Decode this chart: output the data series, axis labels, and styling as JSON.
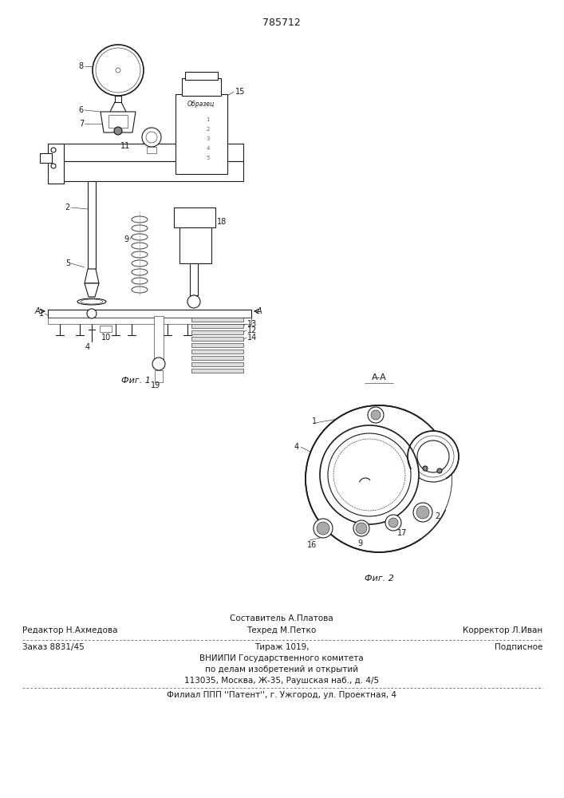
{
  "patent_number": "785712",
  "bg_color": "#ffffff",
  "fig1_caption": "Фиг. 1",
  "fig2_caption": "Фиг. 2",
  "fig2_label": "A-A",
  "footer": {
    "line1_center": "Составитель А.Платова",
    "line2_left": "Редактор Н.Ахмедова",
    "line2_center": "Техред М.Петко",
    "line2_right": "Корректор Л.Иван",
    "line3_left": "Заказ 8831/45",
    "line3_center": "Тираж 1019,",
    "line3_right": "Подписное",
    "line4": "ВНИИПИ Государственного комитета",
    "line5": "по делам изобретений и открытий",
    "line6": "113035, Москва, Ж-35, Раушская наб., д. 4/5",
    "line7": "Филиал ППП ''Патент'', г. Ужгород, ул. Проектная, 4"
  }
}
